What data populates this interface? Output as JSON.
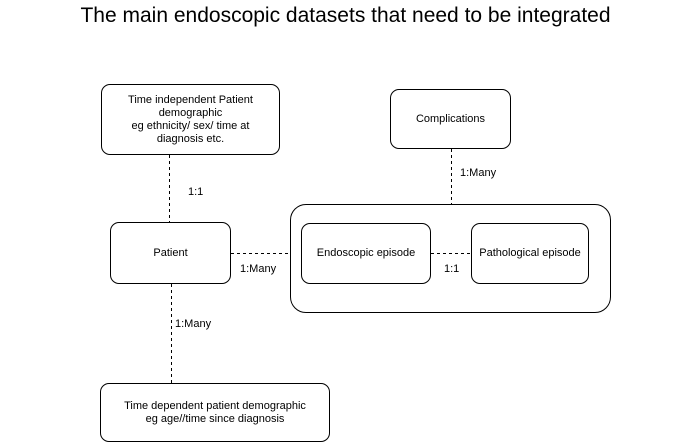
{
  "diagram": {
    "title": "The main endoscopic datasets that need to be integrated",
    "nodes": {
      "time_independent": "Time independent Patient\ndemographic\neg ethnicity/ sex/ time at\ndiagnosis etc.",
      "complications": "Complications",
      "patient": "Patient",
      "endoscopic_episode": "Endoscopic episode",
      "pathological_episode": "Pathological episode",
      "time_dependent": "Time dependent patient demographic\neg age//time since diagnosis"
    },
    "relations": {
      "patient_time_independent": "1:1",
      "patient_episodes": "1:Many",
      "episodes_complications": "1:Many",
      "endoscopic_pathological": "1:1",
      "patient_time_dependent": "1:Many"
    }
  }
}
